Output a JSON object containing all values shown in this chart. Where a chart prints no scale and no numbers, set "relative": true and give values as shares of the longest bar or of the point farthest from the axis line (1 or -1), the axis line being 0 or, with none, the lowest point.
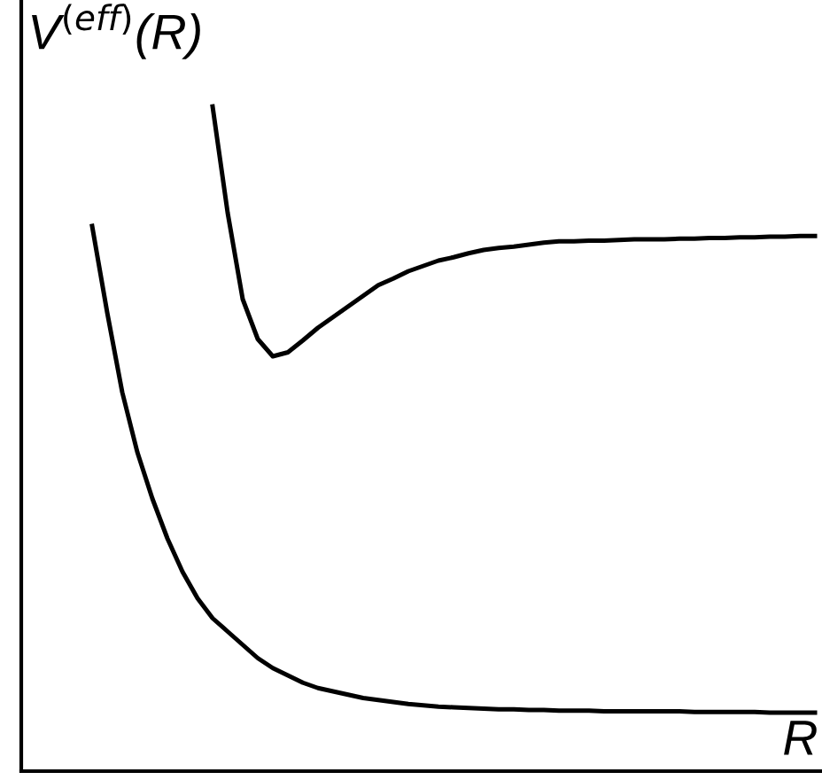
{
  "chart_data": {
    "type": "line",
    "relative": true,
    "ylabel": "V$^{(eff)}$(R)",
    "xlabel": "R",
    "legend": false,
    "marker": "none",
    "line_style": "solid",
    "categories": [
      null,
      null,
      null,
      null,
      null,
      null,
      null,
      null,
      null,
      null,
      null,
      null,
      null,
      null,
      null,
      null,
      null,
      null,
      null,
      null,
      null,
      null,
      null,
      null,
      null,
      null,
      null,
      null,
      null,
      null,
      null,
      null,
      null,
      null,
      null,
      null,
      null,
      null,
      null,
      null,
      null,
      null,
      null,
      null,
      null,
      null,
      null,
      null,
      null
    ],
    "series": [
      {
        "color": "#000000",
        "values": [
          0.82,
          0.69,
          0.57,
          0.48,
          0.41,
          0.35,
          0.3,
          0.26,
          0.23,
          0.21,
          0.19,
          0.17,
          0.155,
          0.144,
          0.133,
          0.125,
          0.12,
          0.115,
          0.11,
          0.107,
          0.104,
          0.101,
          0.099,
          0.097,
          0.096,
          0.095,
          0.094,
          0.093,
          0.093,
          0.092,
          0.092,
          0.091,
          0.091,
          0.091,
          0.09,
          0.09,
          0.09,
          0.09,
          0.09,
          0.09,
          0.089,
          0.089,
          0.089,
          0.089,
          0.089,
          0.088,
          0.088,
          0.088,
          0.088
        ]
      },
      {
        "color": "#000000",
        "values": [
          null,
          null,
          null,
          null,
          null,
          null,
          null,
          null,
          1.0,
          0.84,
          0.71,
          0.65,
          0.624,
          0.63,
          0.648,
          0.667,
          0.683,
          0.699,
          0.715,
          0.731,
          0.741,
          0.752,
          0.76,
          0.768,
          0.773,
          0.779,
          0.784,
          0.787,
          0.789,
          0.792,
          0.795,
          0.797,
          0.797,
          0.798,
          0.798,
          0.799,
          0.8,
          0.8,
          0.8,
          0.801,
          0.801,
          0.802,
          0.802,
          0.803,
          0.803,
          0.804,
          0.804,
          0.805,
          0.805
        ]
      }
    ]
  }
}
